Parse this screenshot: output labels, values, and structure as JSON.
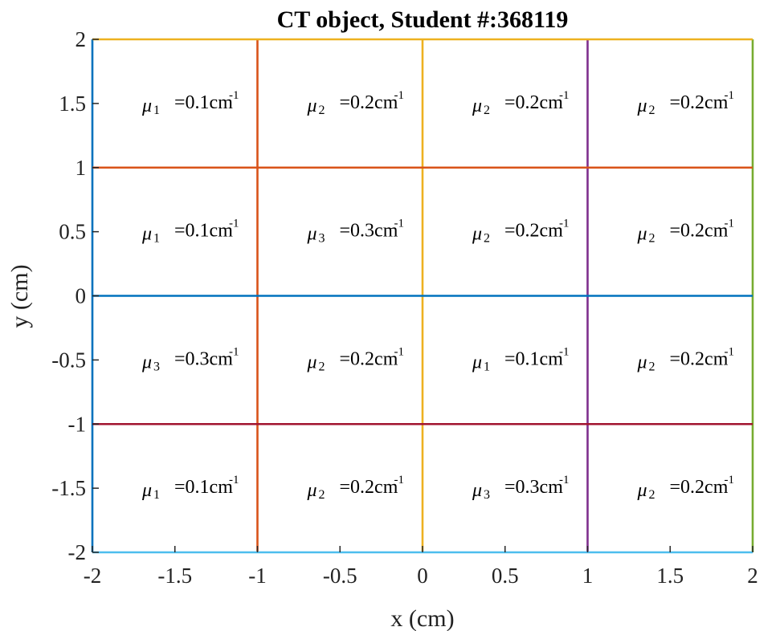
{
  "chart_data": {
    "type": "line",
    "title": "CT object, Student #:368119",
    "xlabel": "x (cm)",
    "ylabel": "y (cm)",
    "xlim": [
      -2,
      2
    ],
    "ylim": [
      -2,
      2
    ],
    "xticks": [
      -2,
      -1.5,
      -1,
      -0.5,
      0,
      0.5,
      1,
      1.5,
      2
    ],
    "yticks": [
      -2,
      -1.5,
      -1,
      -0.5,
      0,
      0.5,
      1,
      1.5,
      2
    ],
    "xtick_labels": [
      "-2",
      "-1.5",
      "-1",
      "-0.5",
      "0",
      "0.5",
      "1",
      "1.5",
      "2"
    ],
    "ytick_labels": [
      "-2",
      "-1.5",
      "-1",
      "-0.5",
      "0",
      "0.5",
      "1",
      "1.5",
      "2"
    ],
    "grid": false,
    "legend": "none",
    "series": [
      {
        "orientation": "vertical",
        "x": -2,
        "y": [
          -2,
          2
        ],
        "color": "#0072BD"
      },
      {
        "orientation": "vertical",
        "x": -1,
        "y": [
          -2,
          2
        ],
        "color": "#D95319"
      },
      {
        "orientation": "vertical",
        "x": 0,
        "y": [
          -2,
          2
        ],
        "color": "#EDB120"
      },
      {
        "orientation": "vertical",
        "x": 1,
        "y": [
          -2,
          2
        ],
        "color": "#7E2F8E"
      },
      {
        "orientation": "vertical",
        "x": 2,
        "y": [
          -2,
          2
        ],
        "color": "#77AC30"
      },
      {
        "orientation": "horizontal",
        "y": -2,
        "x": [
          -2,
          2
        ],
        "color": "#4DBEEE"
      },
      {
        "orientation": "horizontal",
        "y": -1,
        "x": [
          -2,
          2
        ],
        "color": "#A2142F"
      },
      {
        "orientation": "horizontal",
        "y": 0,
        "x": [
          -2,
          2
        ],
        "color": "#0072BD"
      },
      {
        "orientation": "horizontal",
        "y": 1,
        "x": [
          -2,
          2
        ],
        "color": "#D95319"
      },
      {
        "orientation": "horizontal",
        "y": 2,
        "x": [
          -2,
          2
        ],
        "color": "#EDB120"
      }
    ],
    "annotations": [
      {
        "x": -2,
        "y": 1.5,
        "symbol": "μ",
        "sub": "1",
        "value": "=0.1cm",
        "sup": "-1"
      },
      {
        "x": -1,
        "y": 1.5,
        "symbol": "μ",
        "sub": "2",
        "value": "=0.2cm",
        "sup": "-1"
      },
      {
        "x": 0,
        "y": 1.5,
        "symbol": "μ",
        "sub": "2",
        "value": "=0.2cm",
        "sup": "-1"
      },
      {
        "x": 1,
        "y": 1.5,
        "symbol": "μ",
        "sub": "2",
        "value": "=0.2cm",
        "sup": "-1"
      },
      {
        "x": -2,
        "y": 0.5,
        "symbol": "μ",
        "sub": "1",
        "value": "=0.1cm",
        "sup": "-1"
      },
      {
        "x": -1,
        "y": 0.5,
        "symbol": "μ",
        "sub": "3",
        "value": "=0.3cm",
        "sup": "-1"
      },
      {
        "x": 0,
        "y": 0.5,
        "symbol": "μ",
        "sub": "2",
        "value": "=0.2cm",
        "sup": "-1"
      },
      {
        "x": 1,
        "y": 0.5,
        "symbol": "μ",
        "sub": "2",
        "value": "=0.2cm",
        "sup": "-1"
      },
      {
        "x": -2,
        "y": -0.5,
        "symbol": "μ",
        "sub": "3",
        "value": "=0.3cm",
        "sup": "-1"
      },
      {
        "x": -1,
        "y": -0.5,
        "symbol": "μ",
        "sub": "2",
        "value": "=0.2cm",
        "sup": "-1"
      },
      {
        "x": 0,
        "y": -0.5,
        "symbol": "μ",
        "sub": "1",
        "value": "=0.1cm",
        "sup": "-1"
      },
      {
        "x": 1,
        "y": -0.5,
        "symbol": "μ",
        "sub": "2",
        "value": "=0.2cm",
        "sup": "-1"
      },
      {
        "x": -2,
        "y": -1.5,
        "symbol": "μ",
        "sub": "1",
        "value": "=0.1cm",
        "sup": "-1"
      },
      {
        "x": -1,
        "y": -1.5,
        "symbol": "μ",
        "sub": "2",
        "value": "=0.2cm",
        "sup": "-1"
      },
      {
        "x": 0,
        "y": -1.5,
        "symbol": "μ",
        "sub": "3",
        "value": "=0.3cm",
        "sup": "-1"
      },
      {
        "x": 1,
        "y": -1.5,
        "symbol": "μ",
        "sub": "2",
        "value": "=0.2cm",
        "sup": "-1"
      }
    ]
  }
}
